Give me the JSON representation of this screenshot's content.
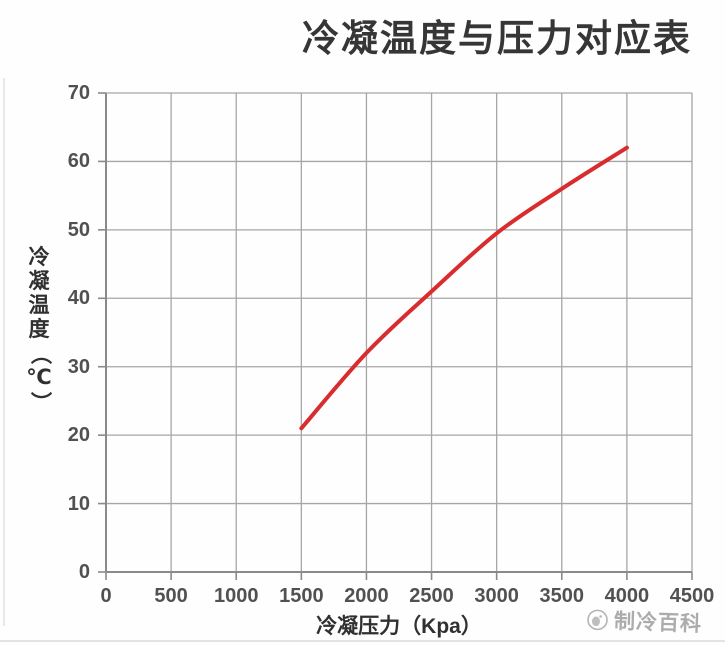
{
  "chart_data": {
    "type": "line",
    "title": "冷凝温度与压力对应表",
    "xlabel": "冷凝压力（Kpa）",
    "ylabel": "冷凝温度（℃）",
    "ylabel_chars": [
      "冷",
      "凝",
      "温",
      "度",
      "（",
      "℃",
      "）"
    ],
    "x_ticks": [
      0,
      500,
      1000,
      1500,
      2000,
      2500,
      3000,
      3500,
      4000,
      4500
    ],
    "y_ticks": [
      0,
      10,
      20,
      30,
      40,
      50,
      60,
      70
    ],
    "xlim": [
      0,
      4500
    ],
    "ylim": [
      0,
      70
    ],
    "grid": true,
    "legend": "none",
    "series": [
      {
        "color": "#d92c2e",
        "points": [
          [
            1500,
            21
          ],
          [
            2000,
            32
          ],
          [
            2500,
            41
          ],
          [
            3000,
            49.5
          ],
          [
            3500,
            56
          ],
          [
            4000,
            62
          ]
        ]
      }
    ]
  },
  "style": {
    "grid_color": "#a6a6a6",
    "axis_color": "#8a8a8a",
    "tick_label_color": "#515151",
    "title_color": "#363636",
    "watermark_color": "#9e9e9e"
  },
  "watermark": {
    "label": "制冷百科",
    "icon": "mascot-circle-icon"
  }
}
